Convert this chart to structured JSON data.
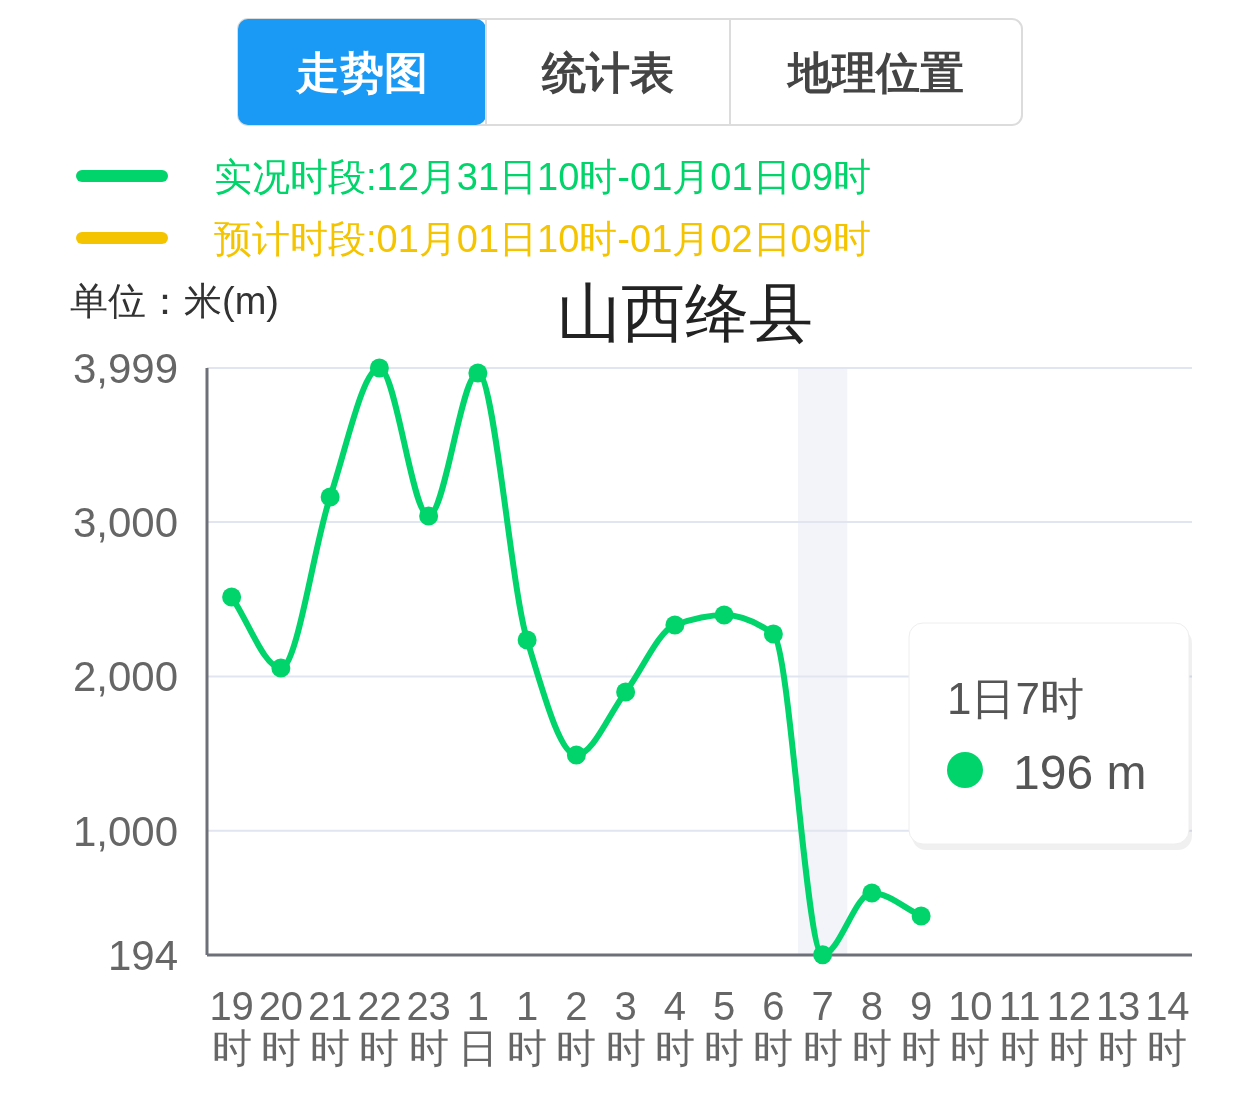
{
  "chart_data": {
    "type": "line",
    "title": "山西绛县",
    "ylabel": "单位：米(m)",
    "categories": [
      "19时",
      "20时",
      "21时",
      "22时",
      "23时",
      "1日",
      "1时",
      "2时",
      "3时",
      "4时",
      "5时",
      "6时",
      "7时",
      "8时",
      "9时",
      "10时",
      "11时",
      "12时",
      "13时",
      "14时"
    ],
    "series": [
      {
        "name": "实况时段:12月31日10时-01月01日09时",
        "color": "#00d46a",
        "values": [
          2515,
          2054,
          3163,
          3999,
          3040,
          3966,
          2236,
          1490,
          1899,
          2333,
          2398,
          2275,
          196,
          596,
          447,
          null,
          null,
          null,
          null,
          null
        ]
      },
      {
        "name": "预计时段:01月01日10时-01月02日09时",
        "color": "#f5c400",
        "values": [
          null,
          null,
          null,
          null,
          null,
          null,
          null,
          null,
          null,
          null,
          null,
          null,
          null,
          null,
          null,
          null,
          null,
          null,
          null,
          null
        ]
      }
    ],
    "ylim": [
      194,
      3999
    ],
    "yticks": [
      194,
      {
        "value": 1000,
        "label": "1,000"
      },
      {
        "value": 2000,
        "label": "2,000"
      },
      {
        "value": 3000,
        "label": "3,000"
      },
      {
        "value": 3999,
        "label": "3,999"
      }
    ],
    "grid": "y",
    "legend": "top",
    "marker": "circle",
    "line_style": "solid",
    "bands": [
      {
        "axis": "x",
        "from": "7时",
        "to": "7时",
        "color": "#f2f4fa"
      }
    ],
    "annotations": [
      "走势图",
      "统计表",
      "地理位置",
      "1日7时",
      "196 m"
    ]
  }
}
